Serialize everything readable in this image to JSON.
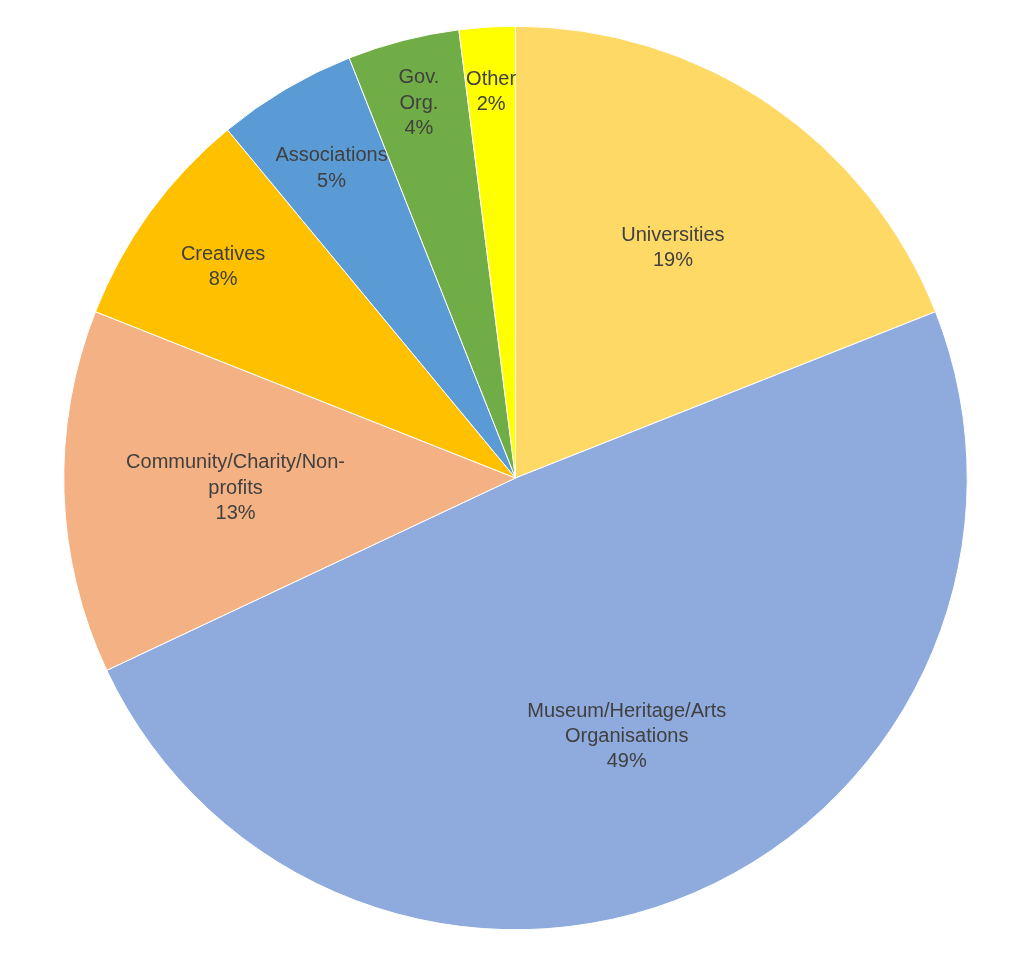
{
  "chart_data": {
    "type": "pie",
    "categories": [
      "Universities",
      "Museum/Heritage/Arts Organisations",
      "Community/Charity/Non-profits",
      "Creatives",
      "Associations",
      "Gov. Org.",
      "Other"
    ],
    "values": [
      19,
      49,
      13,
      8,
      5,
      4,
      2
    ],
    "colors": [
      "#ffd966",
      "#8faadc",
      "#f4b183",
      "#ffc000",
      "#5b9bd5",
      "#70ad47",
      "#ffff00"
    ],
    "value_labels": [
      "19%",
      "49%",
      "13%",
      "8%",
      "5%",
      "4%",
      "2%"
    ]
  }
}
